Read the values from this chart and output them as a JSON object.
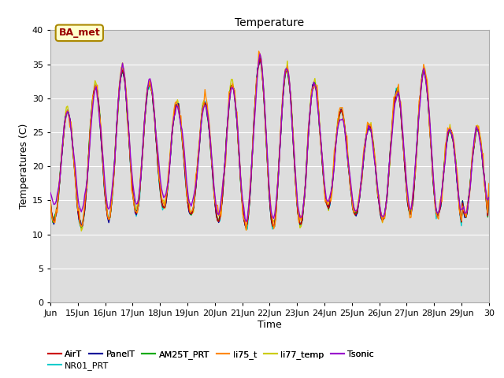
{
  "title": "Temperature",
  "xlabel": "Time",
  "ylabel": "Temperatures (C)",
  "ylim": [
    0,
    40
  ],
  "yticks": [
    0,
    5,
    10,
    15,
    20,
    25,
    30,
    35,
    40
  ],
  "xtick_labels": [
    "Jun",
    "15Jun",
    "16Jun",
    "17Jun",
    "18Jun",
    "19Jun",
    "20Jun",
    "21Jun",
    "22Jun",
    "23Jun",
    "24Jun",
    "25Jun",
    "26Jun",
    "27Jun",
    "28Jun",
    "29Jun",
    "30"
  ],
  "series_colors": {
    "AirT": "#cc0000",
    "PanelT": "#000099",
    "AM25T_PRT": "#00aa00",
    "li75_t": "#ff8800",
    "li77_temp": "#cccc00",
    "Tsonic": "#9900cc",
    "NR01_PRT": "#00cccc"
  },
  "annotation_text": "BA_met",
  "annotation_color": "#990000",
  "annotation_bg": "#ffffcc",
  "annotation_border": "#aa8800",
  "plot_bg": "#dddddd",
  "fig_bg": "#ffffff",
  "grid_color": "#ffffff",
  "title_fontsize": 10,
  "axis_label_fontsize": 9,
  "tick_fontsize": 8,
  "legend_fontsize": 8,
  "linewidth": 1.0
}
